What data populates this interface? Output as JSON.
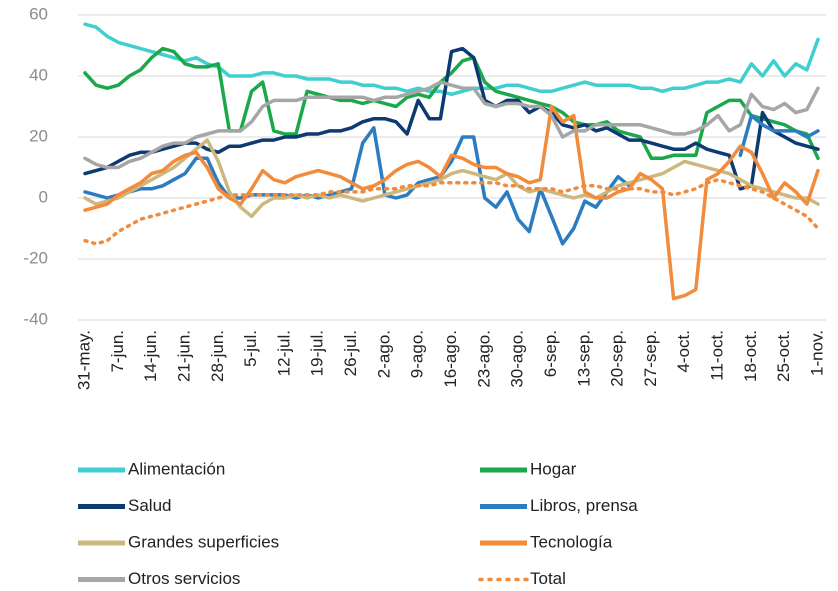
{
  "chart_data": {
    "type": "line",
    "categories": [
      "31-may.",
      null,
      null,
      "7-jun.",
      null,
      null,
      "14-jun.",
      null,
      null,
      "21-jun.",
      null,
      null,
      "28-jun.",
      null,
      null,
      "5-jul.",
      null,
      null,
      "12-jul.",
      null,
      null,
      "19-jul.",
      null,
      null,
      "26-jul.",
      null,
      null,
      "2-ago.",
      null,
      null,
      "9-ago.",
      null,
      null,
      "16-ago.",
      null,
      null,
      "23-ago.",
      null,
      null,
      "30-ago.",
      null,
      null,
      "6-sep.",
      null,
      null,
      "13-sep.",
      null,
      null,
      "20-sep.",
      null,
      null,
      "27-sep.",
      null,
      null,
      "4-oct.",
      null,
      null,
      "11-oct.",
      null,
      null,
      "18-oct.",
      null,
      null,
      "25-oct.",
      null,
      null,
      "1-nov."
    ],
    "series": [
      {
        "name": "Alimentación",
        "color": "#3fcfd0",
        "values": [
          57,
          56,
          53,
          51,
          50,
          49,
          48,
          47,
          46,
          45,
          46,
          44,
          43,
          40,
          40,
          40,
          41,
          41,
          40,
          40,
          39,
          39,
          39,
          38,
          38,
          37,
          37,
          36,
          36,
          35,
          36,
          35,
          35,
          34,
          35,
          36,
          36,
          36,
          37,
          37,
          36,
          35,
          35,
          36,
          37,
          38,
          37,
          37,
          37,
          37,
          36,
          36,
          35,
          36,
          36,
          37,
          38,
          38,
          39,
          38,
          44,
          40,
          45,
          40,
          44,
          42,
          52
        ]
      },
      {
        "name": "Hogar",
        "color": "#1ba84b",
        "values": [
          41,
          37,
          36,
          37,
          40,
          42,
          46,
          49,
          48,
          44,
          43,
          43,
          44,
          22,
          22,
          35,
          38,
          22,
          21,
          21,
          35,
          34,
          33,
          32,
          32,
          31,
          32,
          31,
          30,
          33,
          34,
          33,
          38,
          41,
          45,
          46,
          38,
          35,
          34,
          33,
          32,
          31,
          30,
          28,
          25,
          24,
          24,
          25,
          22,
          21,
          20,
          13,
          13,
          14,
          14,
          14,
          28,
          30,
          32,
          32,
          27,
          26,
          25,
          24,
          22,
          21,
          13
        ]
      },
      {
        "name": "Salud",
        "color": "#0e3a72",
        "values": [
          8,
          9,
          10,
          12,
          14,
          15,
          15,
          16,
          17,
          18,
          18,
          16,
          15,
          17,
          17,
          18,
          19,
          19,
          20,
          20,
          21,
          21,
          22,
          22,
          23,
          25,
          26,
          26,
          25,
          21,
          32,
          26,
          26,
          48,
          49,
          46,
          32,
          30,
          32,
          32,
          28,
          30,
          28,
          24,
          23,
          24,
          22,
          23,
          21,
          19,
          19,
          18,
          17,
          16,
          16,
          18,
          16,
          15,
          14,
          3,
          4,
          28,
          22,
          20,
          18,
          17,
          16
        ]
      },
      {
        "name": "Libros, prensa",
        "color": "#2b7cc1",
        "values": [
          2,
          1,
          0,
          1,
          2,
          3,
          3,
          4,
          6,
          8,
          13,
          13,
          5,
          0,
          0,
          1,
          1,
          1,
          1,
          0,
          1,
          0,
          1,
          2,
          3,
          18,
          23,
          1,
          0,
          1,
          5,
          6,
          7,
          12,
          20,
          20,
          0,
          -3,
          2,
          -7,
          -11,
          3,
          -6,
          -15,
          -10,
          -1,
          -3,
          2,
          7,
          4,
          null,
          null,
          null,
          null,
          null,
          null,
          null,
          null,
          null,
          14,
          27,
          24,
          22,
          22,
          22,
          20,
          22
        ]
      },
      {
        "name": "Grandes superficies",
        "color": "#ccb87c",
        "values": [
          0,
          -2,
          -1,
          0,
          2,
          4,
          6,
          8,
          10,
          13,
          16,
          19,
          12,
          2,
          -3,
          -6,
          -2,
          0,
          0,
          1,
          0,
          1,
          0,
          1,
          0,
          -1,
          0,
          1,
          2,
          3,
          4,
          5,
          6,
          8,
          9,
          8,
          7,
          6,
          8,
          4,
          2,
          3,
          2,
          1,
          0,
          1,
          0,
          2,
          4,
          5,
          6,
          7,
          8,
          10,
          12,
          11,
          10,
          9,
          8,
          6,
          4,
          3,
          2,
          1,
          0,
          0,
          -2
        ]
      },
      {
        "name": "Tecnología",
        "color": "#f28b3b",
        "values": [
          -4,
          -3,
          -2,
          1,
          3,
          5,
          8,
          9,
          12,
          14,
          15,
          10,
          3,
          0,
          -2,
          3,
          9,
          6,
          5,
          7,
          8,
          9,
          8,
          7,
          5,
          3,
          4,
          6,
          9,
          11,
          12,
          10,
          7,
          14,
          13,
          11,
          10,
          10,
          8,
          7,
          5,
          6,
          30,
          25,
          27,
          2,
          0,
          0,
          2,
          3,
          8,
          6,
          3,
          -33,
          -32,
          -30,
          6,
          8,
          12,
          17,
          15,
          8,
          0,
          5,
          2,
          -2,
          9
        ]
      },
      {
        "name": "Otros servicios",
        "color": "#a6a6a6",
        "values": [
          13,
          11,
          10,
          10,
          12,
          13,
          15,
          17,
          18,
          18,
          20,
          21,
          22,
          22,
          22,
          25,
          30,
          32,
          32,
          32,
          33,
          33,
          33,
          33,
          33,
          33,
          32,
          33,
          33,
          34,
          35,
          36,
          38,
          37,
          36,
          36,
          31,
          30,
          31,
          31,
          30,
          30,
          27,
          20,
          22,
          22,
          24,
          24,
          24,
          24,
          24,
          23,
          22,
          21,
          21,
          22,
          24,
          27,
          22,
          24,
          34,
          30,
          29,
          31,
          28,
          29,
          36
        ]
      },
      {
        "name": "Total",
        "color": "#f28b3b",
        "dash": "dotted",
        "values": [
          -14,
          -15,
          -14,
          -11,
          -9,
          -7,
          -6,
          -5,
          -4,
          -3,
          -2,
          -1,
          0,
          1,
          1,
          1,
          1,
          1,
          1,
          1,
          1,
          1,
          2,
          2,
          2,
          2,
          3,
          3,
          3,
          4,
          4,
          4,
          5,
          5,
          5,
          5,
          5,
          5,
          4,
          4,
          3,
          3,
          3,
          2,
          3,
          4,
          4,
          3,
          3,
          3,
          3,
          2,
          2,
          1,
          2,
          3,
          5,
          6,
          5,
          4,
          3,
          2,
          0,
          -2,
          -4,
          -6,
          -10
        ]
      }
    ],
    "ylim": [
      -40,
      60
    ],
    "yticks": [
      -40,
      -20,
      0,
      20,
      40,
      60
    ],
    "grid": true,
    "legend": "bottom"
  }
}
